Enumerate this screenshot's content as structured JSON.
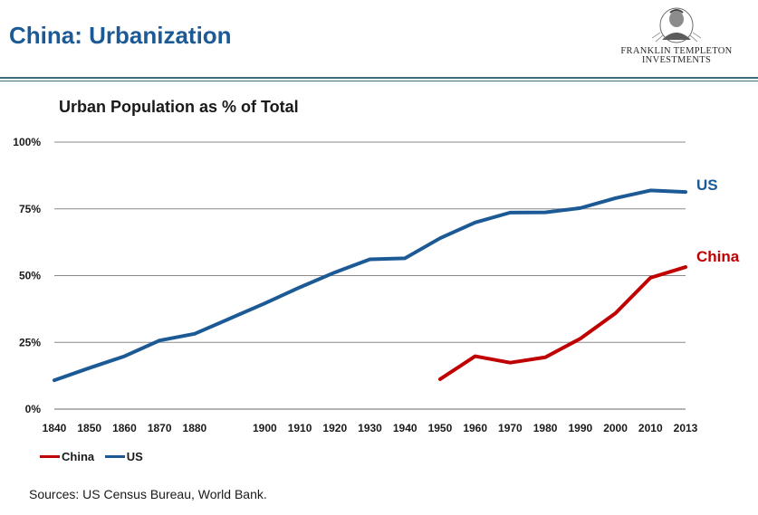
{
  "slide": {
    "title": "China: Urbanization",
    "sources": "Sources: US Census Bureau, World Bank."
  },
  "logo": {
    "line1": "FRANKLIN TEMPLETON",
    "line2": "INVESTMENTS",
    "icon": "portrait-emblem-icon"
  },
  "colors": {
    "title_blue": "#1c5a96",
    "us": "#1c5a96",
    "china": "#c00000",
    "grid": "#8a8a8a"
  },
  "chart_data": {
    "type": "line",
    "title": "Urban Population as % of Total",
    "xlabel": "",
    "ylabel": "",
    "x": [
      1840,
      1850,
      1860,
      1870,
      1880,
      1890,
      1900,
      1910,
      1920,
      1930,
      1940,
      1950,
      1960,
      1970,
      1980,
      1990,
      2000,
      2010,
      2013
    ],
    "x_ticks": [
      "1840",
      "1850",
      "1860",
      "1870",
      "1880",
      "1900",
      "1910",
      "1920",
      "1930",
      "1940",
      "1950",
      "1960",
      "1970",
      "1980",
      "1990",
      "2000",
      "2010",
      "2013"
    ],
    "y_ticks": [
      "0%",
      "25%",
      "50%",
      "75%",
      "100%"
    ],
    "ylim": [
      0,
      100
    ],
    "grid": true,
    "legend": "bottom-left",
    "series": [
      {
        "name": "US",
        "color": "#1c5a96",
        "points": [
          [
            1840,
            10.8
          ],
          [
            1850,
            15.4
          ],
          [
            1860,
            19.8
          ],
          [
            1870,
            25.7
          ],
          [
            1880,
            28.2
          ],
          [
            1900,
            39.6
          ],
          [
            1910,
            45.6
          ],
          [
            1920,
            51.2
          ],
          [
            1930,
            56.1
          ],
          [
            1940,
            56.5
          ],
          [
            1950,
            64.0
          ],
          [
            1960,
            69.9
          ],
          [
            1970,
            73.6
          ],
          [
            1980,
            73.7
          ],
          [
            1990,
            75.3
          ],
          [
            2000,
            79.0
          ],
          [
            2010,
            81.9
          ],
          [
            2013,
            81.3
          ]
        ]
      },
      {
        "name": "China",
        "color": "#c00000",
        "points": [
          [
            1950,
            11.2
          ],
          [
            1960,
            19.8
          ],
          [
            1970,
            17.4
          ],
          [
            1980,
            19.4
          ],
          [
            1990,
            26.4
          ],
          [
            2000,
            35.9
          ],
          [
            2010,
            49.2
          ],
          [
            2013,
            53.2
          ]
        ]
      }
    ]
  }
}
